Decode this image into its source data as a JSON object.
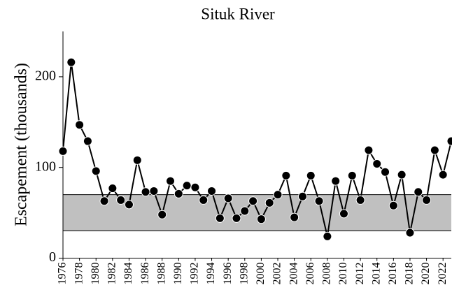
{
  "chart_data": {
    "type": "line",
    "title": "Situk River",
    "ylabel": "Escapement (thousands)",
    "x": [
      1976,
      1977,
      1978,
      1979,
      1980,
      1981,
      1982,
      1983,
      1984,
      1985,
      1986,
      1987,
      1988,
      1989,
      1990,
      1991,
      1992,
      1993,
      1994,
      1995,
      1996,
      1997,
      1998,
      1999,
      2000,
      2001,
      2002,
      2003,
      2004,
      2005,
      2006,
      2007,
      2008,
      2009,
      2010,
      2011,
      2012,
      2013,
      2014,
      2015,
      2016,
      2017,
      2018,
      2019,
      2020,
      2021,
      2022,
      2023
    ],
    "values": [
      118,
      216,
      147,
      129,
      96,
      63,
      77,
      64,
      59,
      108,
      73,
      74,
      48,
      85,
      71,
      80,
      78,
      64,
      74,
      44,
      66,
      44,
      52,
      63,
      43,
      61,
      70,
      91,
      45,
      68,
      91,
      63,
      24,
      85,
      49,
      91,
      64,
      119,
      104,
      95,
      58,
      92,
      28,
      73,
      64,
      119,
      92,
      129
    ],
    "color": "#000000",
    "band": [
      30,
      70
    ],
    "band_color": "#c0c0c0",
    "xlim": [
      1976,
      2023
    ],
    "xticks": [
      1976,
      1978,
      1980,
      1982,
      1984,
      1986,
      1988,
      1990,
      1992,
      1994,
      1996,
      1998,
      2000,
      2002,
      2004,
      2006,
      2008,
      2010,
      2012,
      2014,
      2016,
      2018,
      2020,
      2022
    ],
    "ylim": [
      0,
      250
    ],
    "yticks": [
      0,
      100,
      200
    ]
  }
}
